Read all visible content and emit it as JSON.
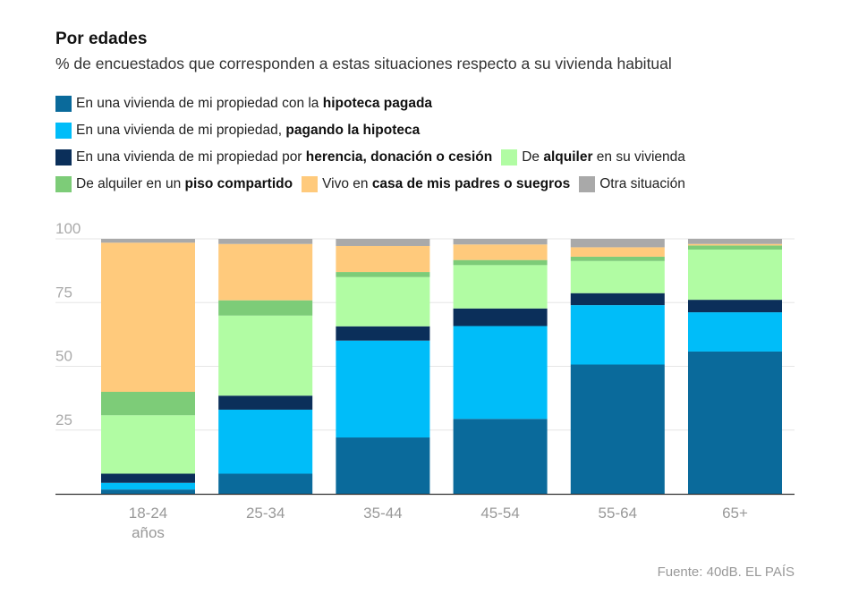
{
  "header": {
    "title": "Por edades",
    "subtitle": "% de encuestados que corresponden a estas situaciones respecto a su vivienda habitual"
  },
  "legend": [
    {
      "pre": "En una vivienda de mi propiedad con la ",
      "bold": "hipoteca pagada",
      "post": "",
      "color": "#0a6a9b"
    },
    {
      "pre": "En una vivienda de mi propiedad, ",
      "bold": "pagando la hipoteca",
      "post": "",
      "color": "#00bdf9"
    },
    {
      "pre": "En una vivienda de mi propiedad por ",
      "bold": "herencia, donación o cesión",
      "post": "",
      "color": "#0b2f5a"
    },
    {
      "pre": "De ",
      "bold": "alquiler",
      "post": " en su vivienda",
      "color": "#b1fca3"
    },
    {
      "pre": "De alquiler en un ",
      "bold": "piso compartido",
      "post": "",
      "color": "#7dcc78"
    },
    {
      "pre": "Vivo en ",
      "bold": "casa de mis padres o suegros",
      "post": "",
      "color": "#ffca7c"
    },
    {
      "pre": "",
      "bold": "",
      "post": "Otra situación",
      "color": "#a9a9a9"
    }
  ],
  "chart_data": {
    "type": "bar",
    "stacked": true,
    "categories": [
      "18-24 años",
      "25-34",
      "35-44",
      "45-54",
      "55-64",
      "65+"
    ],
    "category_labels": [
      [
        "18-24",
        "años"
      ],
      [
        "25-34"
      ],
      [
        "35-44"
      ],
      [
        "45-54"
      ],
      [
        "55-64"
      ],
      [
        "65+"
      ]
    ],
    "series": [
      {
        "name": "En una vivienda de mi propiedad con la hipoteca pagada",
        "color": "#0a6a9b",
        "values": [
          1.7,
          7.9,
          22.1,
          29.4,
          50.7,
          55.8
        ]
      },
      {
        "name": "En una vivienda de mi propiedad, pagando la hipoteca",
        "color": "#00bdf9",
        "values": [
          2.6,
          25.1,
          38.0,
          36.4,
          23.3,
          15.4
        ]
      },
      {
        "name": "En una vivienda de mi propiedad por herencia, donación o cesión",
        "color": "#0b2f5a",
        "values": [
          3.6,
          5.5,
          5.6,
          6.9,
          4.7,
          4.9
        ]
      },
      {
        "name": "De alquiler en su vivienda",
        "color": "#b1fca3",
        "values": [
          22.9,
          31.4,
          19.3,
          17.0,
          12.6,
          19.7
        ]
      },
      {
        "name": "De alquiler en un piso compartido",
        "color": "#7dcc78",
        "values": [
          9.2,
          6.0,
          2.0,
          2.0,
          1.7,
          1.6
        ]
      },
      {
        "name": "Vivo en casa de mis padres o suegros",
        "color": "#ffca7c",
        "values": [
          58.5,
          22.1,
          10.2,
          6.1,
          3.7,
          0.6
        ]
      },
      {
        "name": "Otra situación",
        "color": "#a9a9a9",
        "values": [
          1.5,
          2.0,
          2.8,
          2.2,
          3.3,
          2.0
        ]
      }
    ],
    "ylim": [
      0,
      100
    ],
    "yticks": [
      25,
      50,
      75,
      100
    ],
    "grid": true
  },
  "source": "Fuente: 40dB. EL PAÍS"
}
